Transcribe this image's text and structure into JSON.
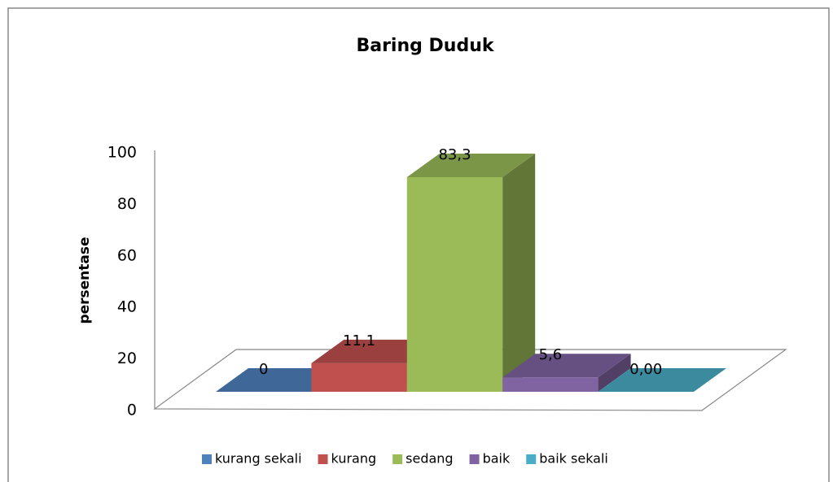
{
  "chart_data": {
    "type": "bar3d",
    "title": "Baring Duduk",
    "ylabel": "persentase",
    "series": [
      {
        "name": "kurang sekali",
        "color": "#4f81bd",
        "values": [
          0
        ],
        "value_labels": [
          "0"
        ]
      },
      {
        "name": "kurang",
        "color": "#c0504d",
        "values": [
          11.1
        ],
        "value_labels": [
          "11,1"
        ]
      },
      {
        "name": "sedang",
        "color": "#9bbb59",
        "values": [
          83.3
        ],
        "value_labels": [
          "83,3"
        ]
      },
      {
        "name": "baik",
        "color": "#8064a2",
        "values": [
          5.6
        ],
        "value_labels": [
          "5,6"
        ]
      },
      {
        "name": "baik sekali",
        "color": "#4bacc6",
        "values": [
          0
        ],
        "value_labels": [
          "0,00"
        ]
      }
    ],
    "ylim": [
      0,
      100
    ],
    "yticks": [
      0,
      20,
      40,
      60,
      80,
      100
    ],
    "legend": "bottom"
  }
}
